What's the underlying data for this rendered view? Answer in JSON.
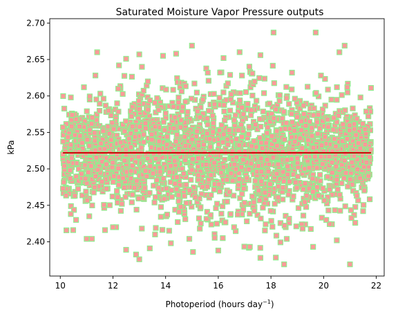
{
  "chart_data": {
    "type": "scatter",
    "title": "Saturated Moisture Vapor Pressure outputs",
    "xlabel_main": "Photoperiod (hours day",
    "xlabel_sup": "−1",
    "xlabel_close": ")",
    "ylabel": "kPa",
    "xlim": [
      9.6,
      22.3
    ],
    "ylim": [
      2.353,
      2.706
    ],
    "xticks": [
      10,
      12,
      14,
      16,
      18,
      20,
      22
    ],
    "yticks": [
      2.4,
      2.45,
      2.5,
      2.55,
      2.6,
      2.65,
      2.7
    ],
    "ytick_labels": [
      "2.40",
      "2.45",
      "2.50",
      "2.55",
      "2.60",
      "2.65",
      "2.70"
    ],
    "grid": false,
    "colors": {
      "point_fill": "#ff9999",
      "point_edge": "#90ee90",
      "trend_line": "#cc0000",
      "axes": "#000000"
    },
    "marker": "square",
    "series": [
      {
        "type": "scatter",
        "x_range": [
          10.1,
          21.8
        ],
        "y_center": 2.52,
        "y_spread_sd": 0.045,
        "points": [
          [
            11.4,
            2.66
          ],
          [
            12.5,
            2.651
          ],
          [
            13.0,
            2.657
          ],
          [
            13.9,
            2.655
          ],
          [
            14.4,
            2.658
          ],
          [
            15.0,
            2.669
          ],
          [
            16.2,
            2.652
          ],
          [
            17.6,
            2.656
          ],
          [
            18.1,
            2.687
          ],
          [
            19.7,
            2.687
          ],
          [
            20.8,
            2.669
          ],
          [
            20.6,
            2.66
          ],
          [
            10.4,
            2.598
          ],
          [
            10.9,
            2.612
          ],
          [
            21.8,
            2.611
          ],
          [
            21.4,
            2.598
          ],
          [
            21.7,
            2.572
          ],
          [
            10.1,
            2.557
          ],
          [
            10.1,
            2.52
          ],
          [
            10.1,
            2.473
          ],
          [
            10.4,
            2.438
          ],
          [
            11.1,
            2.435
          ],
          [
            11.7,
            2.416
          ],
          [
            11.0,
            2.404
          ],
          [
            12.5,
            2.389
          ],
          [
            13.0,
            2.376
          ],
          [
            13.4,
            2.391
          ],
          [
            14.2,
            2.398
          ],
          [
            14.9,
            2.404
          ],
          [
            16.0,
            2.388
          ],
          [
            17.2,
            2.393
          ],
          [
            17.6,
            2.378
          ],
          [
            18.5,
            2.369
          ],
          [
            18.6,
            2.404
          ],
          [
            19.6,
            2.393
          ],
          [
            20.5,
            2.402
          ],
          [
            21.0,
            2.369
          ],
          [
            21.2,
            2.426
          ],
          [
            21.5,
            2.442
          ],
          [
            21.7,
            2.49
          ],
          [
            11.2,
            2.404
          ],
          [
            12.0,
            2.42
          ],
          [
            13.6,
            2.41
          ],
          [
            15.3,
            2.418
          ],
          [
            16.6,
            2.42
          ],
          [
            17.8,
            2.424
          ],
          [
            19.2,
            2.418
          ],
          [
            20.1,
            2.43
          ],
          [
            12.2,
            2.61
          ],
          [
            13.1,
            2.64
          ],
          [
            15.6,
            2.632
          ],
          [
            16.9,
            2.628
          ],
          [
            18.8,
            2.632
          ],
          [
            19.9,
            2.628
          ],
          [
            20.9,
            2.612
          ]
        ]
      }
    ],
    "trend_line": {
      "type": "line",
      "x": [
        10.1,
        21.8
      ],
      "y": [
        2.522,
        2.522
      ]
    }
  }
}
